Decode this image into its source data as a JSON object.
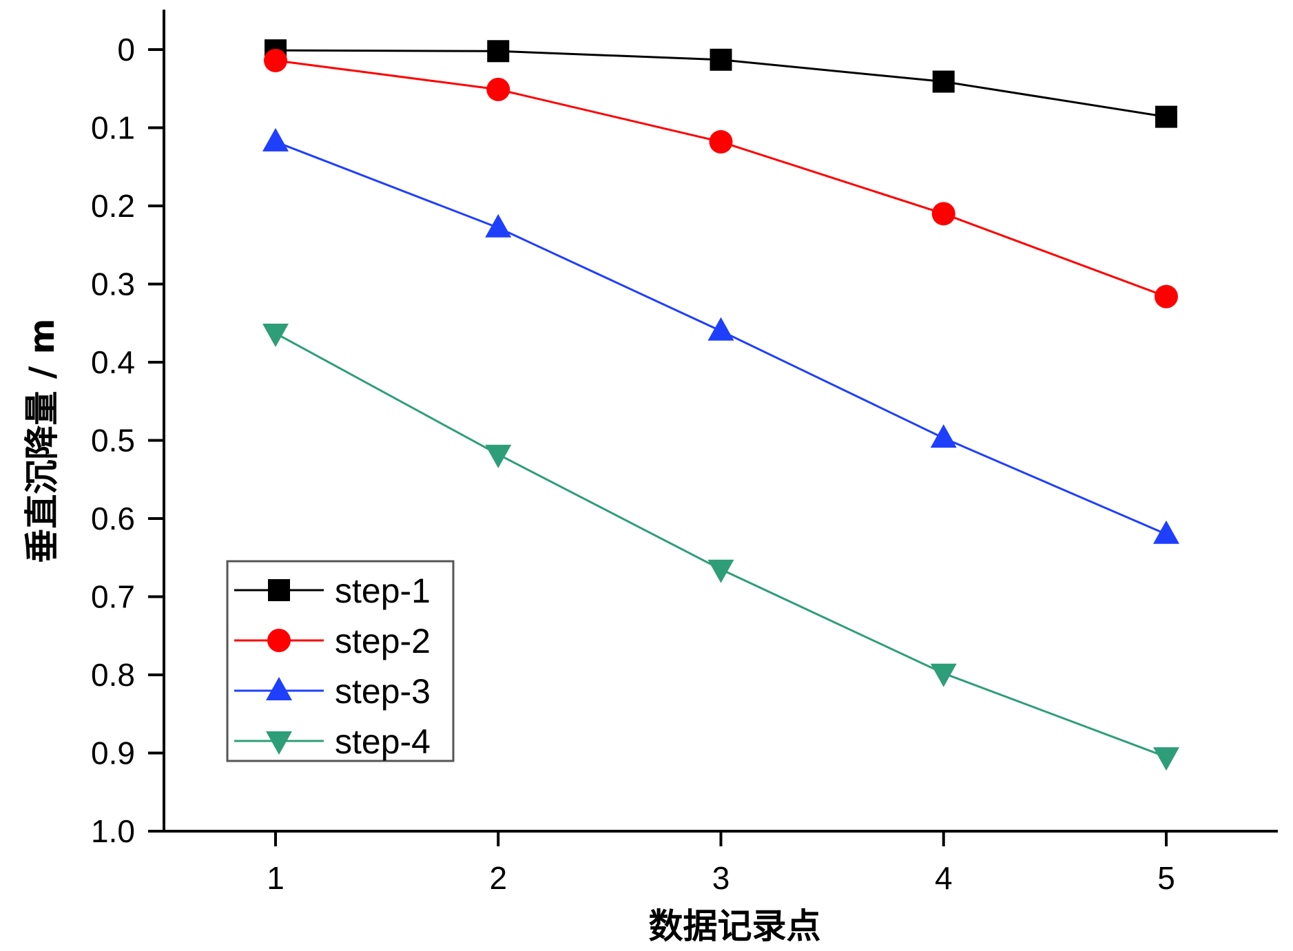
{
  "chart_data": {
    "type": "line",
    "xlabel": "数据记录点",
    "ylabel": "垂直沉降量 / m",
    "x": [
      1,
      2,
      3,
      4,
      5
    ],
    "x_tick_labels": [
      "1",
      "2",
      "3",
      "4",
      "5"
    ],
    "xlim": [
      0.5,
      5.5
    ],
    "ylim": [
      0,
      1.0
    ],
    "y_inverted": true,
    "y_tick_labels": [
      "0",
      "0.1",
      "0.2",
      "0.3",
      "0.4",
      "0.5",
      "0.6",
      "0.7",
      "0.8",
      "0.9",
      "1.0"
    ],
    "y_ticks": [
      0,
      0.1,
      0.2,
      0.3,
      0.4,
      0.5,
      0.6,
      0.7,
      0.8,
      0.9,
      1.0
    ],
    "grid": false,
    "legend_position": "bottom-left",
    "series": [
      {
        "name": "step-1",
        "color": "#000000",
        "marker": "square",
        "values": [
          0.001,
          0.002,
          0.013,
          0.041,
          0.086
        ]
      },
      {
        "name": "step-2",
        "color": "#ff0000",
        "marker": "circle",
        "values": [
          0.014,
          0.051,
          0.118,
          0.21,
          0.316
        ]
      },
      {
        "name": "step-3",
        "color": "#1f3fff",
        "marker": "triangle-up",
        "values": [
          0.118,
          0.228,
          0.36,
          0.497,
          0.62
        ]
      },
      {
        "name": "step-4",
        "color": "#2e9e78",
        "marker": "triangle-down",
        "values": [
          0.363,
          0.518,
          0.665,
          0.798,
          0.905
        ]
      }
    ]
  }
}
